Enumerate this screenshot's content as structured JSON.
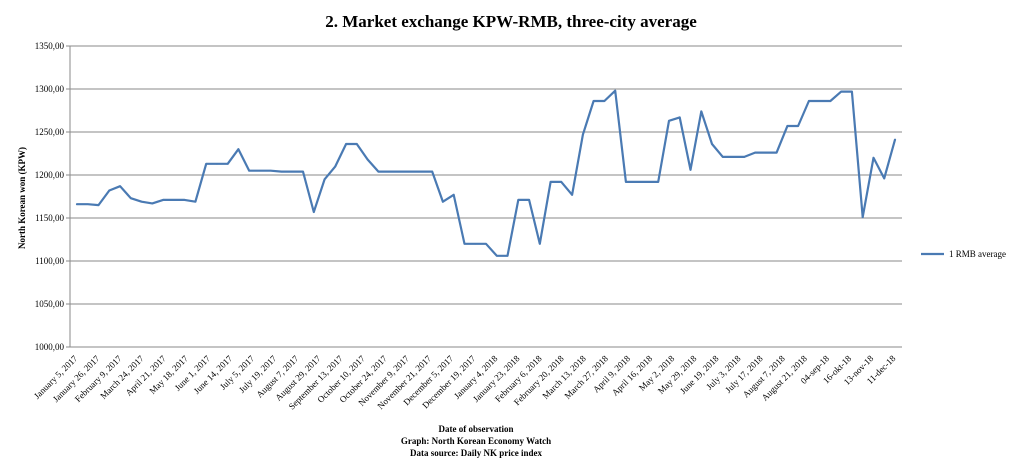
{
  "chart_data": {
    "type": "line",
    "title": "2. Market exchange KPW-RMB, three-city average",
    "xlabel": "Date of observation",
    "ylabel": "North Korean won (KPW)",
    "footer": [
      "Graph: North Korean Economy Watch",
      "Data source: Daily NK price index"
    ],
    "ylim": [
      1000,
      1350
    ],
    "yticks": [
      "1000,00",
      "1050,00",
      "1100,00",
      "1150,00",
      "1200,00",
      "1250,00",
      "1300,00",
      "1350,00"
    ],
    "grid": true,
    "legend_position": "right",
    "x_tick_labels": [
      "January 5, 2017",
      "January 26, 2017",
      "February 9, 2017",
      "March 24, 2017",
      "April 21, 2017",
      "May 18, 2017",
      "June 1, 2017",
      "June 14, 2017",
      "July 5, 2017",
      "July 19, 2017",
      "August 7, 2017",
      "August 29, 2017",
      "September 13, 2017",
      "October 10, 2017",
      "October 24, 2017",
      "November 9, 2017",
      "November 21, 2017",
      "December 5, 2017",
      "December 19, 2017",
      "January 4, 2018",
      "January 23, 2018",
      "February 6, 2018",
      "February 20, 2018",
      "March 13, 2018",
      "March 27, 2018",
      "April 9, 2018",
      "April 16, 2018",
      "May 2, 2018",
      "May 29, 2018",
      "June 19, 2018",
      "July 3, 2018",
      "July 17, 2018",
      "August 7, 2018",
      "August 21, 2018",
      "04-sep-18",
      "16-okt-18",
      "13-nov-18",
      "11-dec-18"
    ],
    "series": [
      {
        "name": "1 RMB average",
        "color": "#4a7ab3",
        "values": [
          1166,
          1166,
          1165,
          1182,
          1187,
          1173,
          1169,
          1167,
          1171,
          1171,
          1171,
          1169,
          1213,
          1213,
          1213,
          1230,
          1205,
          1205,
          1205,
          1204,
          1204,
          1204,
          1157,
          1195,
          1210,
          1236,
          1236,
          1218,
          1204,
          1204,
          1204,
          1204,
          1204,
          1204,
          1169,
          1177,
          1120,
          1120,
          1120,
          1106,
          1106,
          1171,
          1171,
          1120,
          1192,
          1192,
          1177,
          1247,
          1286,
          1286,
          1298,
          1192,
          1192,
          1192,
          1192,
          1263,
          1267,
          1206,
          1274,
          1236,
          1221,
          1221,
          1221,
          1226,
          1226,
          1226,
          1257,
          1257,
          1286,
          1286,
          1286,
          1297,
          1297,
          1151,
          1220,
          1196,
          1241
        ]
      }
    ]
  }
}
